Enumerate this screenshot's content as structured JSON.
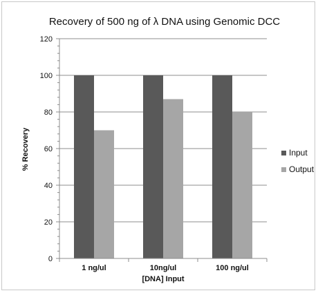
{
  "chart_data": {
    "type": "bar",
    "title": "Recovery of 500 ng of λ DNA using Genomic DCC",
    "xlabel": "[DNA] Input",
    "ylabel": "% Recovery",
    "categories": [
      "1 ng/ul",
      "10ng/ul",
      "100 ng/ul"
    ],
    "series": [
      {
        "name": "Input",
        "values": [
          100,
          100,
          100
        ],
        "color": "#595959"
      },
      {
        "name": "Output",
        "values": [
          70,
          87,
          80
        ],
        "color": "#a6a6a6"
      }
    ],
    "ylim": [
      0,
      120
    ],
    "yticks": [
      0,
      20,
      40,
      60,
      80,
      100,
      120
    ],
    "grid": true,
    "legend_position": "right"
  }
}
